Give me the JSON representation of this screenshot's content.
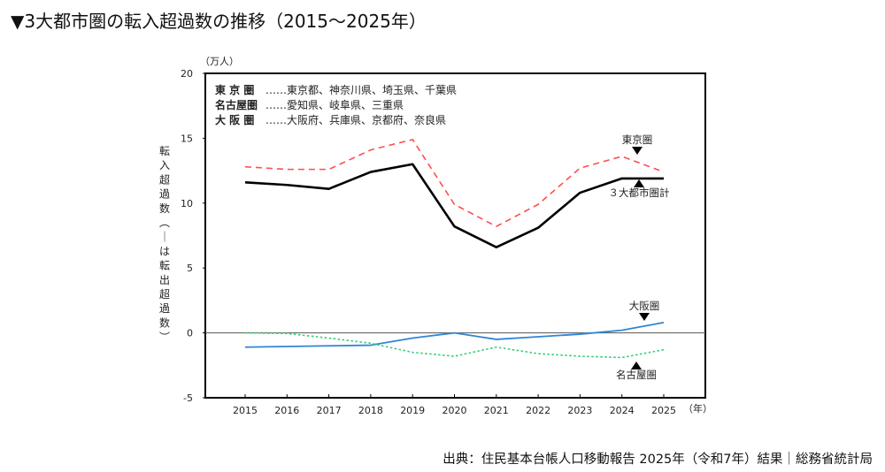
{
  "title": "▼3大都市圏の転入超過数の推移（2015～2025年）",
  "source": "出典：住民基本台帳人口移動報告 2025年（令和7年）結果｜総務省統計局",
  "chart_data": {
    "type": "line",
    "ylabel": "転入超過数（－は転出超過数）",
    "yunit": "（万人）",
    "xunit": "（年）",
    "ylim": [
      -5,
      20
    ],
    "yticks": [
      "20",
      "15",
      "10",
      "5",
      "0",
      "-5"
    ],
    "x": [
      "2015",
      "2016",
      "2017",
      "2018",
      "2019",
      "2020",
      "2021",
      "2022",
      "2023",
      "2024",
      "2025"
    ],
    "grid": false,
    "legend": {
      "placement": "top-left",
      "rows": [
        {
          "name": "東 京 圏",
          "desc": "……東京都、神奈川県、埼玉県、千葉県"
        },
        {
          "name": "名古屋圏",
          "desc": "……愛知県、岐阜県、三重県"
        },
        {
          "name": "大 阪 圏",
          "desc": "……大阪府、兵庫県、京都府、奈良県"
        }
      ]
    },
    "series": [
      {
        "name": "東京圏",
        "color": "#ff4d4d",
        "style": "dashed",
        "values": [
          12.8,
          12.6,
          12.6,
          14.1,
          14.9,
          9.9,
          8.2,
          9.9,
          12.7,
          13.6,
          12.4
        ]
      },
      {
        "name": "3大都市圏計",
        "color": "#000000",
        "style": "solid",
        "values": [
          11.6,
          11.4,
          11.1,
          12.4,
          13.0,
          8.2,
          6.6,
          8.1,
          10.8,
          11.9,
          11.9
        ]
      },
      {
        "name": "大阪圏",
        "color": "#2e86d6",
        "style": "solid",
        "values": [
          -1.1,
          -1.05,
          -1.0,
          -0.95,
          -0.4,
          0.0,
          -0.5,
          -0.3,
          -0.1,
          0.2,
          0.8
        ]
      },
      {
        "name": "名古屋圏",
        "color": "#33cc77",
        "style": "dotted",
        "values": [
          0.0,
          -0.05,
          -0.4,
          -0.8,
          -1.5,
          -1.8,
          -1.1,
          -1.6,
          -1.8,
          -1.9,
          -1.3
        ]
      }
    ]
  }
}
